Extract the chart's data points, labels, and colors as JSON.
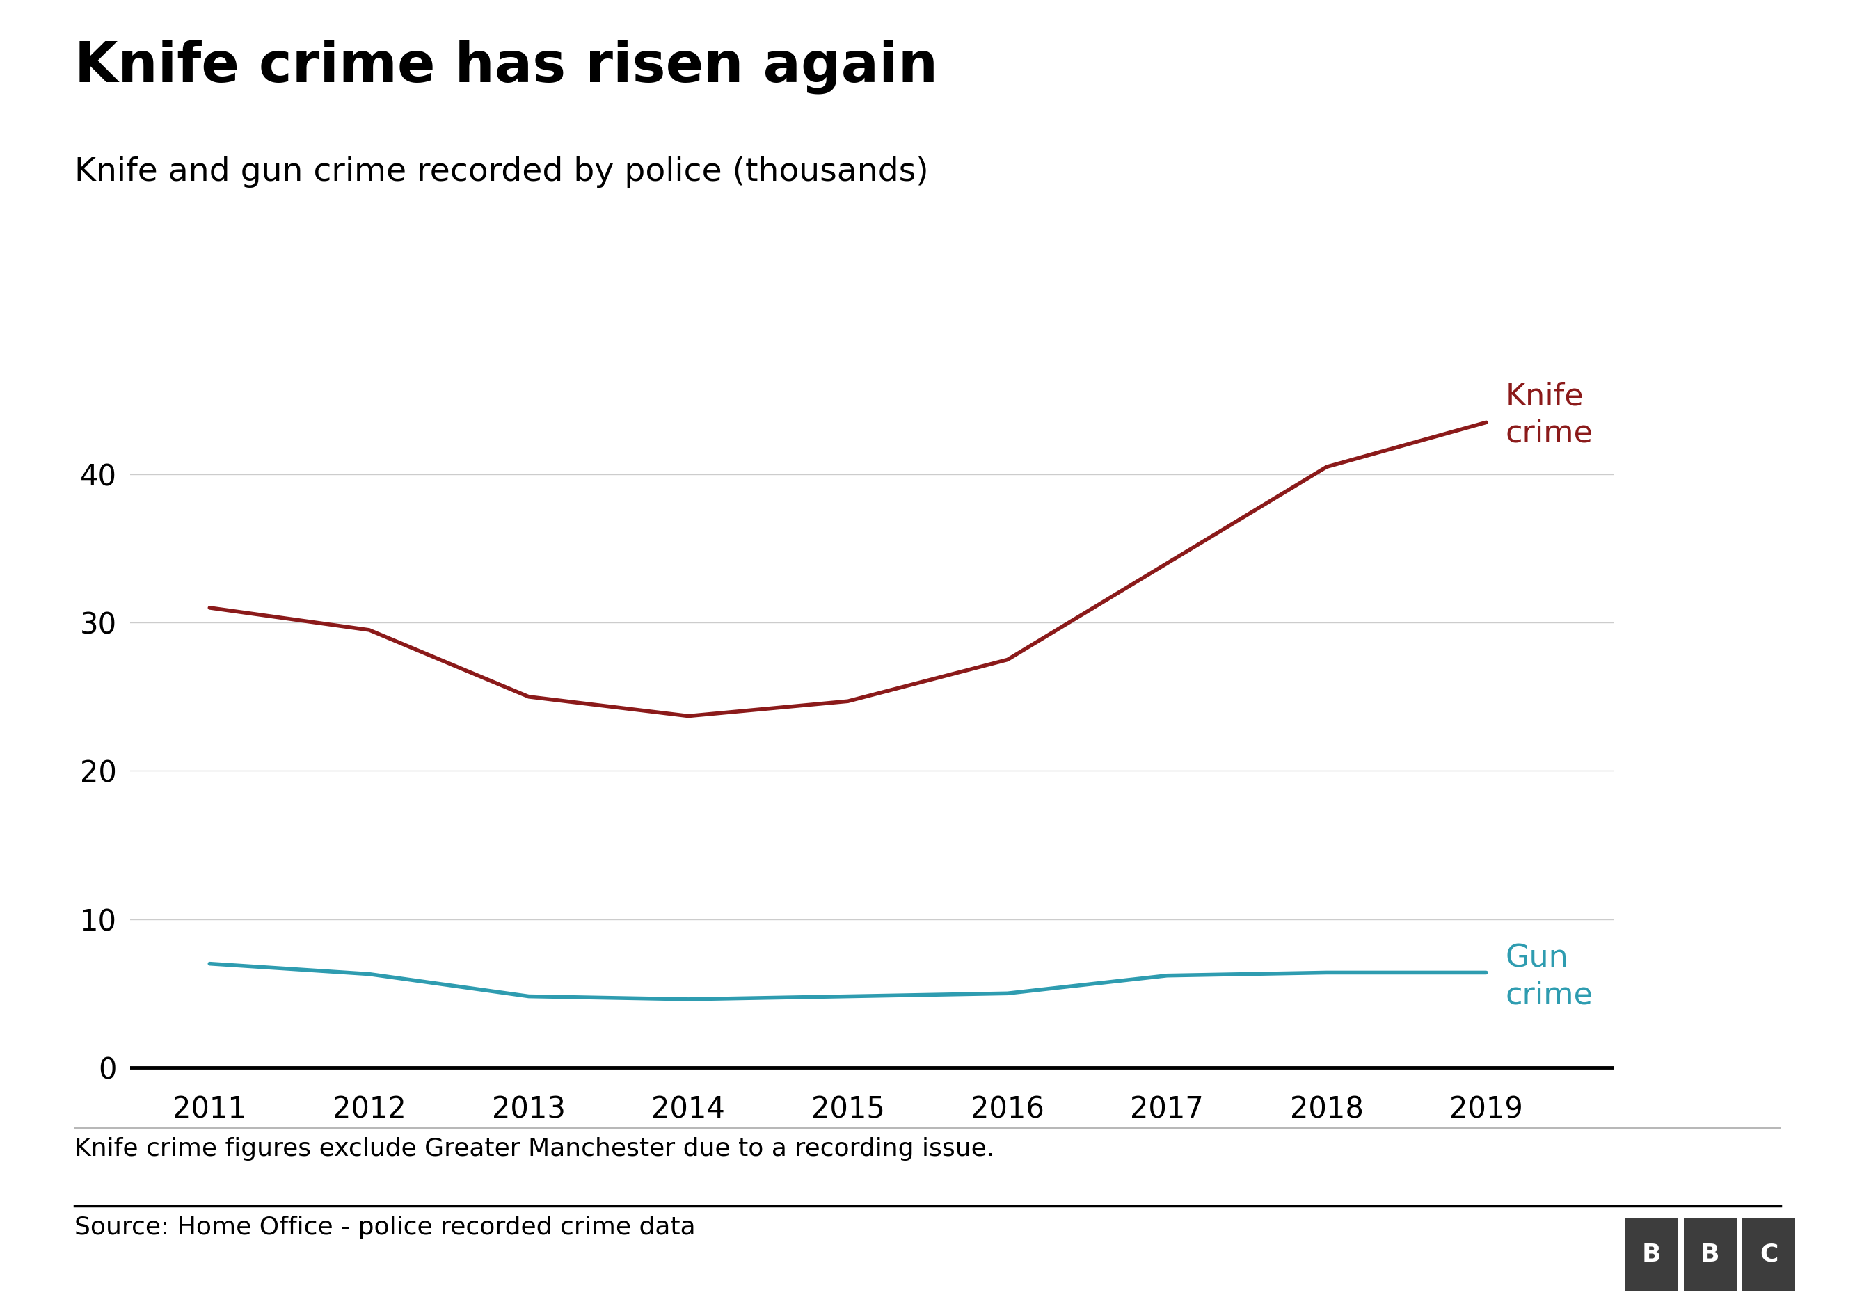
{
  "title": "Knife crime has risen again",
  "subtitle": "Knife and gun crime recorded by police (thousands)",
  "footnote": "Knife crime figures exclude Greater Manchester due to a recording issue.",
  "source": "Source: Home Office - police recorded crime data",
  "years": [
    2011,
    2012,
    2013,
    2014,
    2015,
    2016,
    2017,
    2018,
    2019
  ],
  "knife_crime": [
    31.0,
    29.5,
    25.0,
    23.7,
    24.7,
    27.5,
    34.0,
    40.5,
    43.5
  ],
  "gun_crime": [
    7.0,
    6.3,
    4.8,
    4.6,
    4.8,
    5.0,
    6.2,
    6.4,
    6.4
  ],
  "knife_color": "#8B1A1A",
  "gun_color": "#2E9CB0",
  "title_fontsize": 58,
  "subtitle_fontsize": 34,
  "tick_fontsize": 30,
  "label_fontsize": 32,
  "footnote_fontsize": 26,
  "source_fontsize": 26,
  "yticks": [
    0,
    10,
    20,
    30,
    40
  ],
  "ylim": [
    -1,
    50
  ],
  "background_color": "#ffffff",
  "grid_color": "#cccccc",
  "line_width": 4.0,
  "knife_label": "Knife\ncrime",
  "gun_label": "Gun\ncrime"
}
